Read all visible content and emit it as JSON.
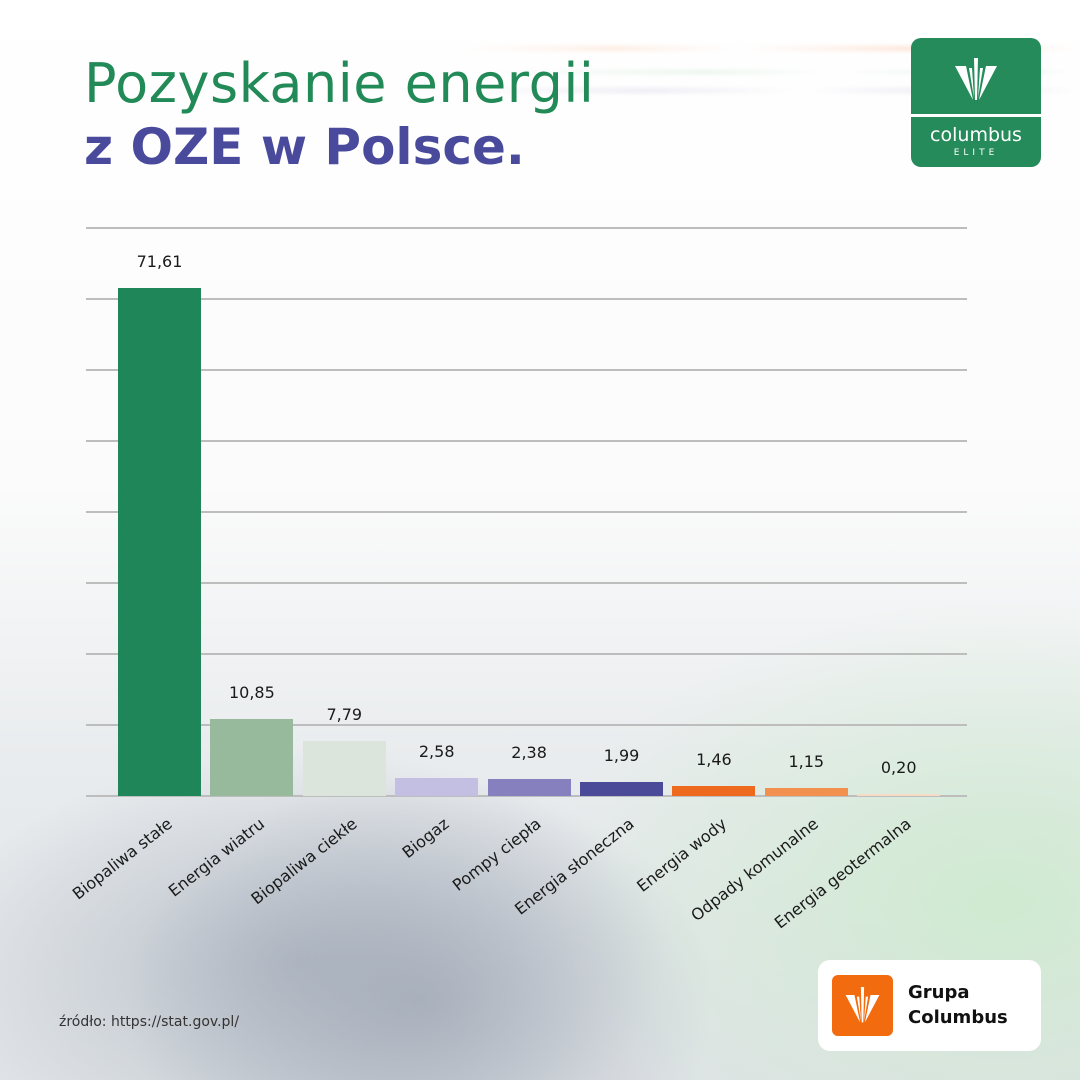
{
  "header": {
    "title_line1": "Pozyskanie energii",
    "title_line2": "z OZE w Polsce."
  },
  "logos": {
    "top_right": {
      "brand": "columbus",
      "sub": "ELITE",
      "bg_color": "#258b5a",
      "icon": "columbus-fan-icon"
    },
    "bottom_right": {
      "line1": "Grupa",
      "line2": "Columbus",
      "bg_color": "#f26b0f",
      "icon": "columbus-fan-icon"
    }
  },
  "footer": {
    "source": "źródło: https://stat.gov.pl/"
  },
  "chart_data": {
    "type": "bar",
    "title": "Pozyskanie energii z OZE w Polsce.",
    "xlabel": "",
    "ylabel": "",
    "ylim": [
      0,
      80
    ],
    "grid": true,
    "gridline_step": 10,
    "y_axis_labels_visible": false,
    "legend": null,
    "categories": [
      "Biopaliwa stałe",
      "Energia wiatru",
      "Biopaliwa ciekłe",
      "Biogaz",
      "Pompy ciepła",
      "Energia słoneczna",
      "Energia wody",
      "Odpady komunalne",
      "Energia geotermalna"
    ],
    "values": [
      71.61,
      10.85,
      7.79,
      2.58,
      2.38,
      1.99,
      1.46,
      1.15,
      0.2
    ],
    "value_labels": [
      "71,61",
      "10,85",
      "7,79",
      "2,58",
      "2,38",
      "1,99",
      "1,46",
      "1,15",
      "0,20"
    ],
    "colors": [
      "#1f8659",
      "#97b99c",
      "#dbe5dc",
      "#c2bfe3",
      "#8680be",
      "#4b4a99",
      "#ee6a1f",
      "#f29050",
      "#f6dcc4"
    ]
  }
}
